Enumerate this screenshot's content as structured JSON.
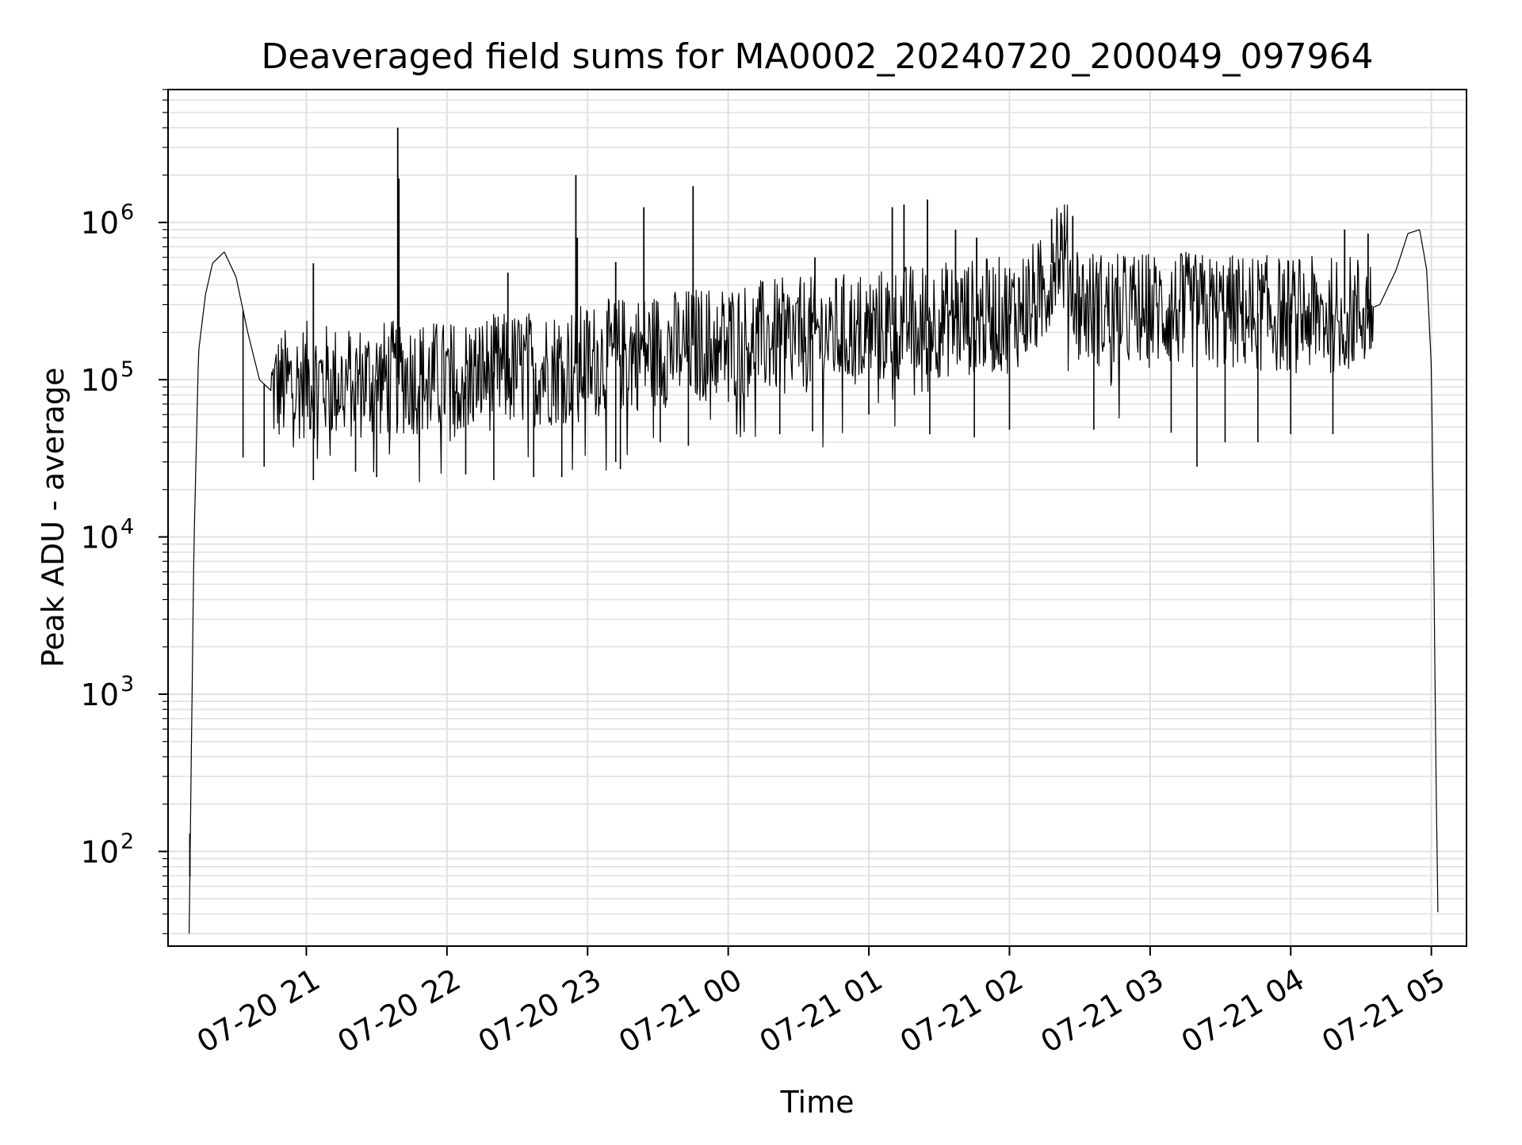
{
  "chart_data": {
    "type": "line",
    "title": "Deaveraged field sums for MA0002_20240720_200049_097964",
    "xlabel": "Time",
    "ylabel": "Peak ADU - average",
    "y_scale": "log",
    "y_major_ticks": [
      {
        "base": "10",
        "exp": "2"
      },
      {
        "base": "10",
        "exp": "3"
      },
      {
        "base": "10",
        "exp": "4"
      },
      {
        "base": "10",
        "exp": "5"
      },
      {
        "base": "10",
        "exp": "6"
      }
    ],
    "ylim": [
      25,
      7000000
    ],
    "xlim": [
      "2024-07-20T20:01",
      "2024-07-21T05:15"
    ],
    "x_ticks": [
      {
        "label": "07-20 21",
        "time": "2024-07-20T21:00"
      },
      {
        "label": "07-20 22",
        "time": "2024-07-20T22:00"
      },
      {
        "label": "07-20 23",
        "time": "2024-07-20T23:00"
      },
      {
        "label": "07-21 00",
        "time": "2024-07-21T00:00"
      },
      {
        "label": "07-21 01",
        "time": "2024-07-21T01:00"
      },
      {
        "label": "07-21 02",
        "time": "2024-07-21T02:00"
      },
      {
        "label": "07-21 03",
        "time": "2024-07-21T03:00"
      },
      {
        "label": "07-21 04",
        "time": "2024-07-21T04:00"
      },
      {
        "label": "07-21 05",
        "time": "2024-07-21T05:00"
      }
    ],
    "grid": true,
    "line_color": "#000000",
    "grid_color": "#e0e0e0",
    "series": [
      {
        "x": [
          "2024-07-20T20:10",
          "2024-07-20T20:12",
          "2024-07-20T20:14",
          "2024-07-20T20:17",
          "2024-07-20T20:20",
          "2024-07-20T20:25",
          "2024-07-20T20:30",
          "2024-07-20T20:35",
          "2024-07-20T20:40",
          "2024-07-20T20:45",
          "2024-07-20T21:00",
          "2024-07-20T21:15",
          "2024-07-20T21:30",
          "2024-07-20T21:45",
          "2024-07-20T22:00",
          "2024-07-20T22:15",
          "2024-07-20T22:30",
          "2024-07-20T22:45",
          "2024-07-20T23:00",
          "2024-07-20T23:15",
          "2024-07-20T23:30",
          "2024-07-20T23:45",
          "2024-07-21T00:00",
          "2024-07-21T00:15",
          "2024-07-21T00:30",
          "2024-07-21T00:45",
          "2024-07-21T01:00",
          "2024-07-21T01:15",
          "2024-07-21T01:30",
          "2024-07-21T01:45",
          "2024-07-21T02:00",
          "2024-07-21T02:15",
          "2024-07-21T02:20",
          "2024-07-21T02:25",
          "2024-07-21T02:30",
          "2024-07-21T02:45",
          "2024-07-21T03:00",
          "2024-07-21T03:15",
          "2024-07-21T03:30",
          "2024-07-21T03:45",
          "2024-07-21T04:00",
          "2024-07-21T04:15",
          "2024-07-21T04:30",
          "2024-07-21T04:38",
          "2024-07-21T04:45",
          "2024-07-21T04:50",
          "2024-07-21T04:55",
          "2024-07-21T04:58",
          "2024-07-21T05:00",
          "2024-07-21T05:01",
          "2024-07-21T05:02",
          "2024-07-21T05:03"
        ],
        "y": [
          30,
          8000,
          150000,
          350000,
          550000,
          650000,
          450000,
          200000,
          100000,
          85000,
          100000,
          95000,
          100000,
          105000,
          100000,
          110000,
          115000,
          120000,
          130000,
          145000,
          155000,
          165000,
          175000,
          185000,
          190000,
          200000,
          210000,
          230000,
          240000,
          250000,
          260000,
          350000,
          750000,
          550000,
          300000,
          270000,
          280000,
          275000,
          270000,
          265000,
          260000,
          255000,
          270000,
          300000,
          500000,
          850000,
          900000,
          500000,
          120000,
          8000,
          300,
          25
        ]
      }
    ],
    "spikes": [
      {
        "x": "2024-07-20T21:39",
        "y": 4000000
      },
      {
        "x": "2024-07-20T21:39.5",
        "y": 1900000
      },
      {
        "x": "2024-07-20T21:03",
        "y": 550000
      },
      {
        "x": "2024-07-20T22:26",
        "y": 480000
      },
      {
        "x": "2024-07-20T22:55",
        "y": 2000000
      },
      {
        "x": "2024-07-20T22:55.6",
        "y": 800000
      },
      {
        "x": "2024-07-20T23:12",
        "y": 560000
      },
      {
        "x": "2024-07-20T23:24",
        "y": 1250000
      },
      {
        "x": "2024-07-20T23:45",
        "y": 1700000
      },
      {
        "x": "2024-07-21T00:37",
        "y": 600000
      },
      {
        "x": "2024-07-21T01:10",
        "y": 1250000
      },
      {
        "x": "2024-07-21T01:15",
        "y": 1300000
      },
      {
        "x": "2024-07-21T01:25",
        "y": 1400000
      },
      {
        "x": "2024-07-21T01:37",
        "y": 900000
      },
      {
        "x": "2024-07-21T01:46",
        "y": 800000
      },
      {
        "x": "2024-07-21T02:18",
        "y": 1050000
      },
      {
        "x": "2024-07-21T02:22",
        "y": 1150000
      },
      {
        "x": "2024-07-21T02:27",
        "y": 1100000
      },
      {
        "x": "2024-07-21T04:23",
        "y": 900000
      },
      {
        "x": "2024-07-21T04:33",
        "y": 850000
      },
      {
        "x": "2024-07-20T20:10.3",
        "y": 130
      }
    ],
    "dips": [
      {
        "x": "2024-07-20T20:33",
        "y": 32000
      },
      {
        "x": "2024-07-20T20:42",
        "y": 28000
      },
      {
        "x": "2024-07-20T21:03",
        "y": 23000
      },
      {
        "x": "2024-07-20T21:21",
        "y": 26000
      },
      {
        "x": "2024-07-20T21:30",
        "y": 24000
      },
      {
        "x": "2024-07-20T22:08",
        "y": 25000
      },
      {
        "x": "2024-07-20T22:20",
        "y": 23000
      },
      {
        "x": "2024-07-20T22:37",
        "y": 24000
      },
      {
        "x": "2024-07-20T22:49",
        "y": 24000
      },
      {
        "x": "2024-07-20T23:12",
        "y": 30000
      },
      {
        "x": "2024-07-20T23:14",
        "y": 27000
      },
      {
        "x": "2024-07-20T23:31",
        "y": 40000
      },
      {
        "x": "2024-07-20T23:43",
        "y": 38000
      },
      {
        "x": "2024-07-21T00:22",
        "y": 45000
      },
      {
        "x": "2024-07-21T00:36",
        "y": 47000
      },
      {
        "x": "2024-07-21T01:00",
        "y": 60000
      },
      {
        "x": "2024-07-21T01:26",
        "y": 45000
      },
      {
        "x": "2024-07-21T01:45",
        "y": 43000
      },
      {
        "x": "2024-07-21T02:00",
        "y": 48000
      },
      {
        "x": "2024-07-21T02:36",
        "y": 48000
      },
      {
        "x": "2024-07-21T03:09",
        "y": 46000
      },
      {
        "x": "2024-07-21T03:20",
        "y": 28000
      },
      {
        "x": "2024-07-21T03:32",
        "y": 40000
      },
      {
        "x": "2024-07-21T03:46",
        "y": 40000
      },
      {
        "x": "2024-07-21T04:00",
        "y": 45000
      },
      {
        "x": "2024-07-21T04:18",
        "y": 45000
      }
    ]
  }
}
